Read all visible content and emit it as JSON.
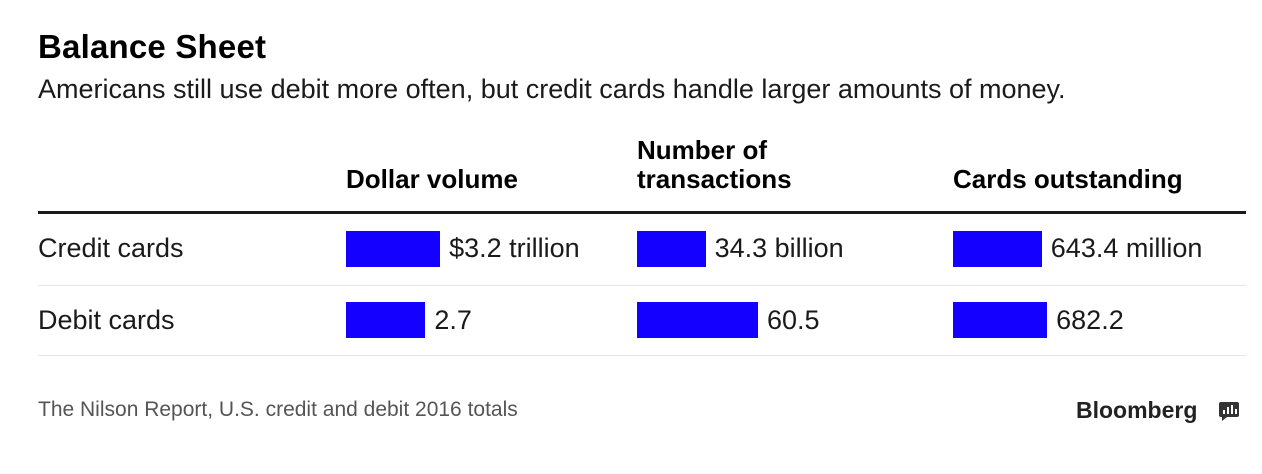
{
  "header": {
    "title": "Balance Sheet",
    "subtitle": "Americans still use debit more often, but credit cards handle larger amounts of money."
  },
  "columns": [
    "Dollar volume",
    "Number of transactions",
    "Cards outstanding"
  ],
  "rows": [
    {
      "label": "Credit cards",
      "display": [
        "$3.2 trillion",
        "34.3 billion",
        "643.4 million"
      ]
    },
    {
      "label": "Debit cards",
      "display": [
        "2.7",
        "60.5",
        "682.2"
      ]
    }
  ],
  "footer": {
    "source": "The Nilson Report, U.S. credit and debit 2016 totals",
    "brand": "Bloomberg"
  },
  "colors": {
    "bar": "#1400ff",
    "rule": "#1a1a1a",
    "row_divider": "#e6e6e6"
  },
  "chart_data": {
    "type": "bar",
    "title": "Balance Sheet",
    "subtitle": "Americans still use debit more often, but credit cards handle larger amounts of money.",
    "categories": [
      "Credit cards",
      "Debit cards"
    ],
    "series": [
      {
        "name": "Dollar volume",
        "values": [
          3.2,
          2.7
        ],
        "labels": [
          "$3.2 trillion",
          "2.7"
        ]
      },
      {
        "name": "Number of transactions",
        "values": [
          34.3,
          60.5
        ],
        "labels": [
          "34.3 billion",
          "60.5"
        ]
      },
      {
        "name": "Cards outstanding",
        "values": [
          643.4,
          682.2
        ],
        "labels": [
          "643.4 million",
          "682.2"
        ]
      }
    ],
    "orientation": "horizontal",
    "grid": false
  }
}
